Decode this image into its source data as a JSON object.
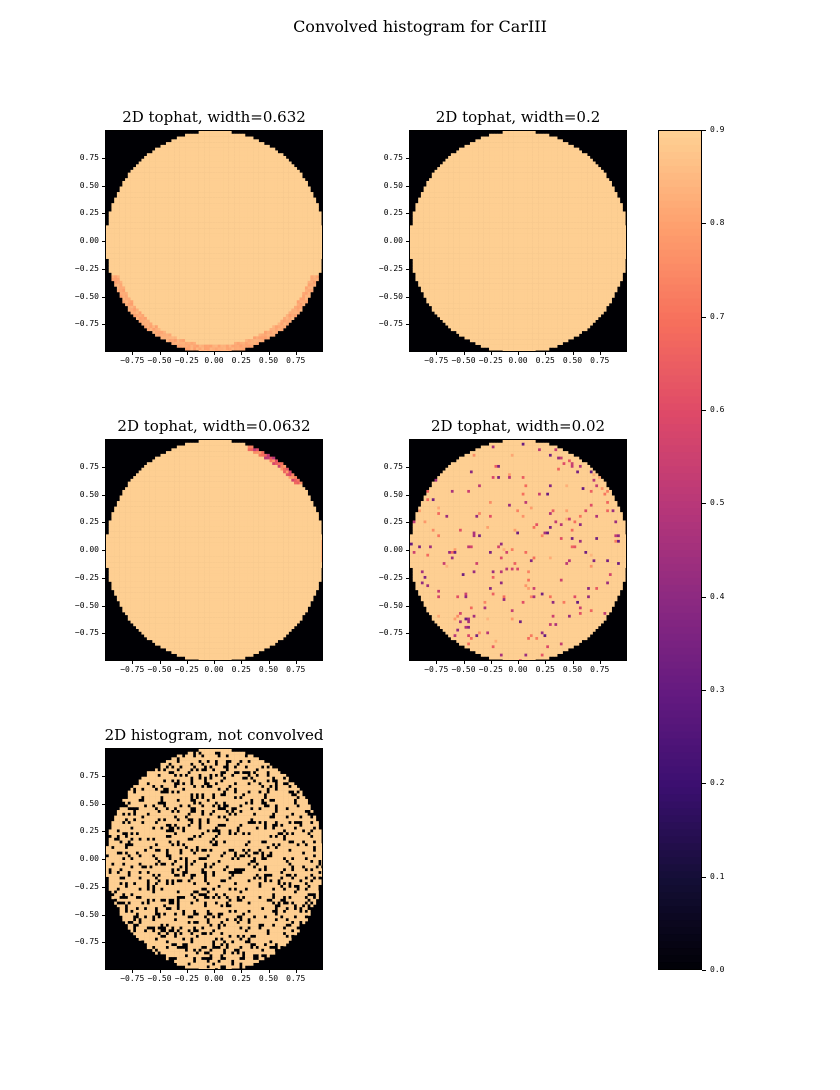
{
  "figure": {
    "title": "Convolved histogram for CarIII"
  },
  "chart_data": [
    {
      "type": "heatmap",
      "title": "2D tophat, width=0.632",
      "xlabel": "",
      "ylabel": "",
      "xlim": [
        -1.0,
        1.0
      ],
      "ylim": [
        -1.0,
        1.0
      ],
      "xticks": [
        -0.75,
        -0.5,
        -0.25,
        0.0,
        0.25,
        0.5,
        0.75
      ],
      "xtick_labels": [
        "−0.75",
        "−0.50",
        "−0.25",
        "0.00",
        "0.25",
        "0.50",
        "0.75"
      ],
      "yticks": [
        0.75,
        0.5,
        0.25,
        0.0,
        -0.25,
        -0.5,
        -0.75
      ],
      "ytick_labels": [
        "0.75",
        "0.50",
        "0.25",
        "0.00",
        "−0.25",
        "−0.50",
        "−0.75"
      ],
      "disk_value": 0.9,
      "outside_value": 0.0,
      "noise_fraction": 0.0,
      "edge_falloff": "bottom"
    },
    {
      "type": "heatmap",
      "title": "2D tophat, width=0.2",
      "xlabel": "",
      "ylabel": "",
      "xlim": [
        -1.0,
        1.0
      ],
      "ylim": [
        -1.0,
        1.0
      ],
      "xticks": [
        -0.75,
        -0.5,
        -0.25,
        0.0,
        0.25,
        0.5,
        0.75
      ],
      "xtick_labels": [
        "−0.75",
        "−0.50",
        "−0.25",
        "0.00",
        "0.25",
        "0.50",
        "0.75"
      ],
      "yticks": [
        0.75,
        0.5,
        0.25,
        0.0,
        -0.25,
        -0.5,
        -0.75
      ],
      "ytick_labels": [
        "0.75",
        "0.50",
        "0.25",
        "0.00",
        "−0.25",
        "−0.50",
        "−0.75"
      ],
      "disk_value": 0.9,
      "outside_value": 0.0,
      "noise_fraction": 0.0,
      "edge_falloff": "none"
    },
    {
      "type": "heatmap",
      "title": "2D tophat, width=0.0632",
      "xlabel": "",
      "ylabel": "",
      "xlim": [
        -1.0,
        1.0
      ],
      "ylim": [
        -1.0,
        1.0
      ],
      "xticks": [
        -0.75,
        -0.5,
        -0.25,
        0.0,
        0.25,
        0.5,
        0.75
      ],
      "xtick_labels": [
        "−0.75",
        "−0.50",
        "−0.25",
        "0.00",
        "0.25",
        "0.50",
        "0.75"
      ],
      "yticks": [
        0.75,
        0.5,
        0.25,
        0.0,
        -0.25,
        -0.5,
        -0.75
      ],
      "ytick_labels": [
        "0.75",
        "0.50",
        "0.25",
        "0.00",
        "−0.25",
        "−0.50",
        "−0.75"
      ],
      "disk_value": 0.9,
      "outside_value": 0.0,
      "noise_fraction": 0.0,
      "edge_falloff": "top-right"
    },
    {
      "type": "heatmap",
      "title": "2D tophat, width=0.02",
      "xlabel": "",
      "ylabel": "",
      "xlim": [
        -1.0,
        1.0
      ],
      "ylim": [
        -1.0,
        1.0
      ],
      "xticks": [
        -0.75,
        -0.5,
        -0.25,
        0.0,
        0.25,
        0.5,
        0.75
      ],
      "xtick_labels": [
        "−0.75",
        "−0.50",
        "−0.25",
        "0.00",
        "0.25",
        "0.50",
        "0.75"
      ],
      "yticks": [
        0.75,
        0.5,
        0.25,
        0.0,
        -0.25,
        -0.5,
        -0.75
      ],
      "ytick_labels": [
        "0.75",
        "0.50",
        "0.25",
        "0.00",
        "−0.25",
        "−0.50",
        "−0.75"
      ],
      "disk_value": 0.9,
      "outside_value": 0.0,
      "noise_fraction": 0.05,
      "noise_range": [
        0.3,
        0.85
      ],
      "edge_falloff": "none"
    },
    {
      "type": "heatmap",
      "title": "2D histogram, not convolved",
      "xlabel": "",
      "ylabel": "",
      "xlim": [
        -1.0,
        1.0
      ],
      "ylim": [
        -1.0,
        1.0
      ],
      "xticks": [
        -0.75,
        -0.5,
        -0.25,
        0.0,
        0.25,
        0.5,
        0.75
      ],
      "xtick_labels": [
        "−0.75",
        "−0.50",
        "−0.25",
        "0.00",
        "0.25",
        "0.50",
        "0.75"
      ],
      "yticks": [
        0.75,
        0.5,
        0.25,
        0.0,
        -0.25,
        -0.5,
        -0.75
      ],
      "ytick_labels": [
        "0.75",
        "0.50",
        "0.25",
        "0.00",
        "−0.25",
        "−0.50",
        "−0.75"
      ],
      "disk_value": 0.9,
      "outside_value": 0.0,
      "noise_fraction": 0.2,
      "noise_range": [
        0.0,
        0.0
      ],
      "edge_falloff": "none"
    }
  ],
  "colorbar": {
    "colormap": "magma",
    "vmin": 0.0,
    "vmax": 0.9,
    "ticks": [
      0.9,
      0.8,
      0.7,
      0.6,
      0.5,
      0.4,
      0.3,
      0.2,
      0.1,
      0.0
    ],
    "tick_labels": [
      "0.9",
      "0.8",
      "0.7",
      "0.6",
      "0.5",
      "0.4",
      "0.3",
      "0.2",
      "0.1",
      "0.0"
    ]
  }
}
